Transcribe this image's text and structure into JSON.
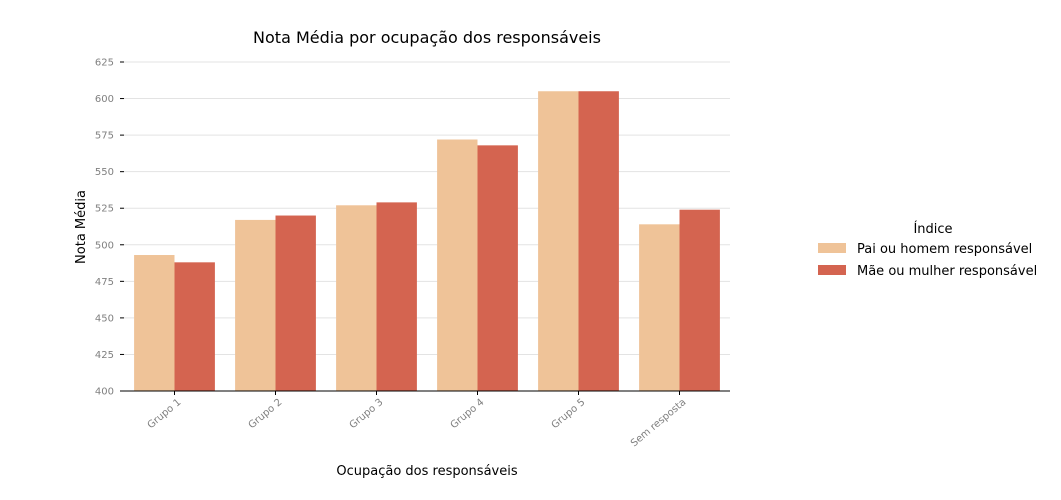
{
  "chart_data": {
    "type": "bar",
    "title": "Nota Média por ocupação dos responsáveis",
    "xlabel": "Ocupação dos responsáveis",
    "ylabel": "Nota Média",
    "ylim": [
      400,
      625
    ],
    "yticks": [
      400,
      425,
      450,
      475,
      500,
      525,
      550,
      575,
      600,
      625
    ],
    "categories": [
      "Grupo 1",
      "Grupo 2",
      "Grupo 3",
      "Grupo 4",
      "Grupo 5",
      "Sem resposta"
    ],
    "series": [
      {
        "name": "Pai ou homem responsável",
        "color": "#efc398",
        "values": [
          493,
          517,
          527,
          572,
          605,
          514
        ]
      },
      {
        "name": "Mãe ou mulher responsável",
        "color": "#d46450",
        "values": [
          488,
          520,
          529,
          568,
          605,
          524
        ]
      }
    ],
    "grid": "horizontal",
    "legend": {
      "title": "Índice",
      "placement": "right"
    }
  }
}
